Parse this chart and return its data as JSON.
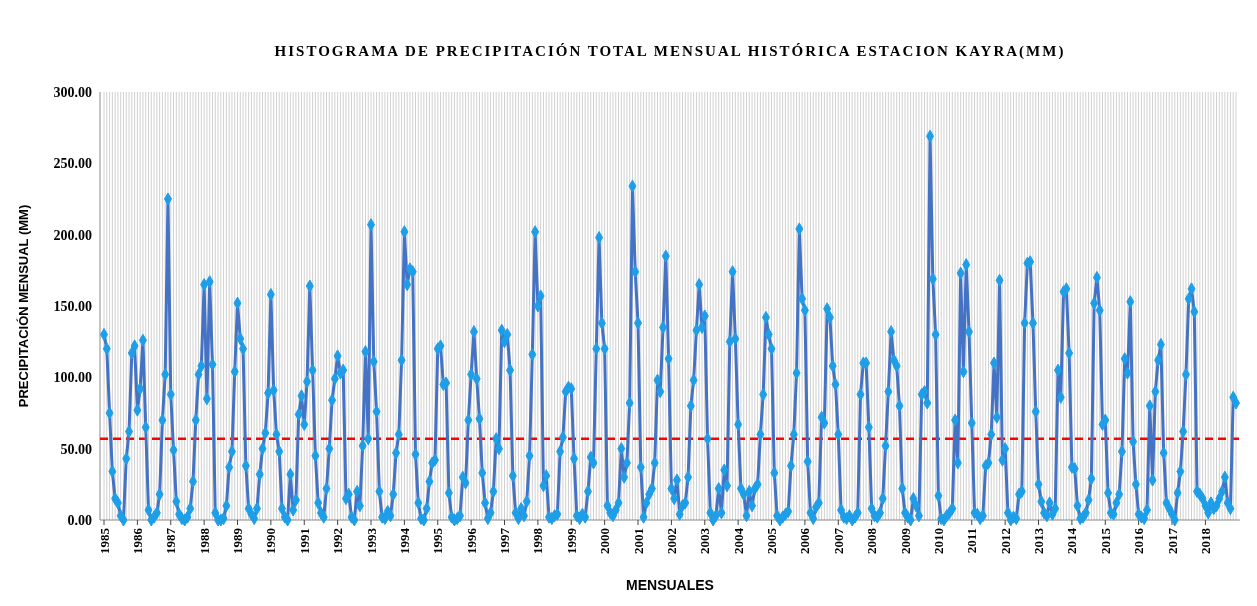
{
  "chart_data": {
    "type": "line",
    "title": "HISTOGRAMA DE PRECIPITACIÓN TOTAL MENSUAL HISTÓRICA ESTACION KAYRA(MM)",
    "xlabel": "MENSUALES",
    "ylabel": "PRECIPITACIÓN MENSUAL (MM)",
    "categories": [
      "1985",
      null,
      null,
      null,
      null,
      null,
      null,
      null,
      null,
      null,
      null,
      null,
      "1986",
      null,
      null,
      null,
      null,
      null,
      null,
      null,
      null,
      null,
      null,
      null,
      "1987",
      null,
      null,
      null,
      null,
      null,
      null,
      null,
      null,
      null,
      null,
      null,
      "1988",
      null,
      null,
      null,
      null,
      null,
      null,
      null,
      null,
      null,
      null,
      null,
      "1989",
      null,
      null,
      null,
      null,
      null,
      null,
      null,
      null,
      null,
      null,
      null,
      "1990",
      null,
      null,
      null,
      null,
      null,
      null,
      null,
      null,
      null,
      null,
      null,
      "1991",
      null,
      null,
      null,
      null,
      null,
      null,
      null,
      null,
      null,
      null,
      null,
      "1992",
      null,
      null,
      null,
      null,
      null,
      null,
      null,
      null,
      null,
      null,
      null,
      "1993",
      null,
      null,
      null,
      null,
      null,
      null,
      null,
      null,
      null,
      null,
      null,
      "1994",
      null,
      null,
      null,
      null,
      null,
      null,
      null,
      null,
      null,
      null,
      null,
      "1995",
      null,
      null,
      null,
      null,
      null,
      null,
      null,
      null,
      null,
      null,
      null,
      "1996",
      null,
      null,
      null,
      null,
      null,
      null,
      null,
      null,
      null,
      null,
      null,
      "1997",
      null,
      null,
      null,
      null,
      null,
      null,
      null,
      null,
      null,
      null,
      null,
      "1998",
      null,
      null,
      null,
      null,
      null,
      null,
      null,
      null,
      null,
      null,
      null,
      "1999",
      null,
      null,
      null,
      null,
      null,
      null,
      null,
      null,
      null,
      null,
      null,
      "2000",
      null,
      null,
      null,
      null,
      null,
      null,
      null,
      null,
      null,
      null,
      null,
      "2001",
      null,
      null,
      null,
      null,
      null,
      null,
      null,
      null,
      null,
      null,
      null,
      "2002",
      null,
      null,
      null,
      null,
      null,
      null,
      null,
      null,
      null,
      null,
      null,
      "2003",
      null,
      null,
      null,
      null,
      null,
      null,
      null,
      null,
      null,
      null,
      null,
      "2004",
      null,
      null,
      null,
      null,
      null,
      null,
      null,
      null,
      null,
      null,
      null,
      "2005",
      null,
      null,
      null,
      null,
      null,
      null,
      null,
      null,
      null,
      null,
      null,
      "2006",
      null,
      null,
      null,
      null,
      null,
      null,
      null,
      null,
      null,
      null,
      null,
      "2007",
      null,
      null,
      null,
      null,
      null,
      null,
      null,
      null,
      null,
      null,
      null,
      "2008",
      null,
      null,
      null,
      null,
      null,
      null,
      null,
      null,
      null,
      null,
      null,
      "2009",
      null,
      null,
      null,
      null,
      null,
      null,
      null,
      null,
      null,
      null,
      null,
      "2010",
      null,
      null,
      null,
      null,
      null,
      null,
      null,
      null,
      null,
      null,
      null,
      "2011",
      null,
      null,
      null,
      null,
      null,
      null,
      null,
      null,
      null,
      null,
      null,
      "2012",
      null,
      null,
      null,
      null,
      null,
      null,
      null,
      null,
      null,
      null,
      null,
      "2013",
      null,
      null,
      null,
      null,
      null,
      null,
      null,
      null,
      null,
      null,
      null,
      "2014",
      null,
      null,
      null,
      null,
      null,
      null,
      null,
      null,
      null,
      null,
      null,
      "2015",
      null,
      null,
      null,
      null,
      null,
      null,
      null,
      null,
      null,
      null,
      null,
      "2016",
      null,
      null,
      null,
      null,
      null,
      null,
      null,
      null,
      null,
      null,
      null,
      "2017",
      null,
      null,
      null,
      null,
      null,
      null,
      null,
      null,
      null,
      null,
      null,
      "2018",
      null,
      null,
      null,
      null,
      null,
      null,
      null,
      null,
      null,
      null,
      null
    ],
    "series": [
      {
        "color": "#4472c4",
        "values": [
          130,
          120,
          75,
          34,
          15,
          12,
          3,
          0,
          43,
          62,
          117,
          122,
          77,
          92,
          126,
          65,
          7,
          0,
          2,
          5,
          18,
          70,
          102,
          225,
          88,
          49,
          13,
          4,
          1,
          0,
          2,
          8,
          27,
          70,
          102,
          108,
          165,
          85,
          167,
          109,
          5,
          0,
          0,
          1,
          10,
          37,
          48,
          104,
          152,
          127,
          120,
          38,
          8,
          4,
          1,
          8,
          32,
          50,
          61,
          89,
          158,
          91,
          60,
          48,
          8,
          2,
          0,
          32,
          7,
          14,
          74,
          87,
          67,
          97,
          164,
          105,
          45,
          12,
          5,
          2,
          22,
          50,
          84,
          99,
          115,
          103,
          105,
          15,
          18,
          2,
          0,
          20,
          10,
          52,
          118,
          57,
          207,
          111,
          76,
          20,
          2,
          1,
          6,
          3,
          18,
          47,
          60,
          112,
          202,
          165,
          176,
          174,
          46,
          12,
          1,
          0,
          8,
          27,
          40,
          42,
          120,
          122,
          95,
          96,
          19,
          2,
          0,
          1,
          3,
          30,
          26,
          70,
          102,
          132,
          99,
          71,
          33,
          12,
          1,
          5,
          20,
          57,
          50,
          133,
          125,
          130,
          105,
          31,
          5,
          1,
          8,
          3,
          13,
          45,
          116,
          202,
          150,
          157,
          24,
          31,
          2,
          1,
          3,
          4,
          48,
          58,
          90,
          93,
          92,
          43,
          3,
          1,
          4,
          2,
          20,
          44,
          40,
          120,
          198,
          138,
          120,
          10,
          5,
          3,
          7,
          12,
          50,
          30,
          40,
          82,
          234,
          174,
          138,
          37,
          2,
          12,
          18,
          22,
          40,
          98,
          90,
          135,
          185,
          113,
          22,
          15,
          28,
          4,
          10,
          12,
          30,
          80,
          98,
          133,
          165,
          135,
          143,
          57,
          5,
          0,
          3,
          22,
          5,
          35,
          24,
          125,
          174,
          127,
          67,
          22,
          18,
          3,
          20,
          10,
          22,
          25,
          60,
          88,
          142,
          130,
          120,
          33,
          3,
          0,
          2,
          4,
          6,
          38,
          60,
          103,
          204,
          155,
          147,
          41,
          5,
          1,
          9,
          12,
          72,
          68,
          148,
          142,
          108,
          95,
          60,
          7,
          2,
          1,
          3,
          0,
          2,
          5,
          88,
          110,
          110,
          65,
          8,
          3,
          2,
          5,
          15,
          52,
          90,
          132,
          112,
          108,
          80,
          22,
          5,
          2,
          0,
          15,
          10,
          3,
          88,
          90,
          82,
          269,
          169,
          130,
          17,
          1,
          0,
          3,
          5,
          8,
          70,
          40,
          173,
          104,
          179,
          132,
          68,
          5,
          4,
          1,
          3,
          38,
          40,
          60,
          110,
          72,
          168,
          42,
          50,
          5,
          0,
          2,
          1,
          18,
          20,
          138,
          180,
          181,
          138,
          76,
          25,
          13,
          5,
          3,
          12,
          4,
          8,
          105,
          86,
          160,
          162,
          117,
          37,
          36,
          10,
          1,
          2,
          5,
          14,
          29,
          152,
          170,
          147,
          67,
          70,
          19,
          5,
          4,
          12,
          18,
          48,
          113,
          103,
          153,
          55,
          25,
          4,
          2,
          1,
          7,
          80,
          28,
          90,
          112,
          123,
          47,
          12,
          8,
          4,
          0,
          19,
          34,
          62,
          102,
          155,
          162,
          146,
          20,
          18,
          15,
          10,
          5,
          12,
          8,
          10,
          15,
          20,
          30,
          12,
          8,
          86,
          82
        ]
      }
    ],
    "ylim": [
      0,
      300
    ],
    "yticks": [
      {
        "value": 0,
        "label": "0.00"
      },
      {
        "value": 50,
        "label": "50.00"
      },
      {
        "value": 100,
        "label": "100.00"
      },
      {
        "value": 150,
        "label": "150.00"
      },
      {
        "value": 200,
        "label": "200.00"
      },
      {
        "value": 250,
        "label": "250.00"
      },
      {
        "value": 300,
        "label": "300.00"
      }
    ],
    "ref_lines": [
      {
        "axis": "y",
        "value": 57,
        "color": "#ff0000",
        "line_style": "dashed"
      }
    ],
    "grid": "x",
    "marker": "diamond",
    "line_style": "solid"
  }
}
